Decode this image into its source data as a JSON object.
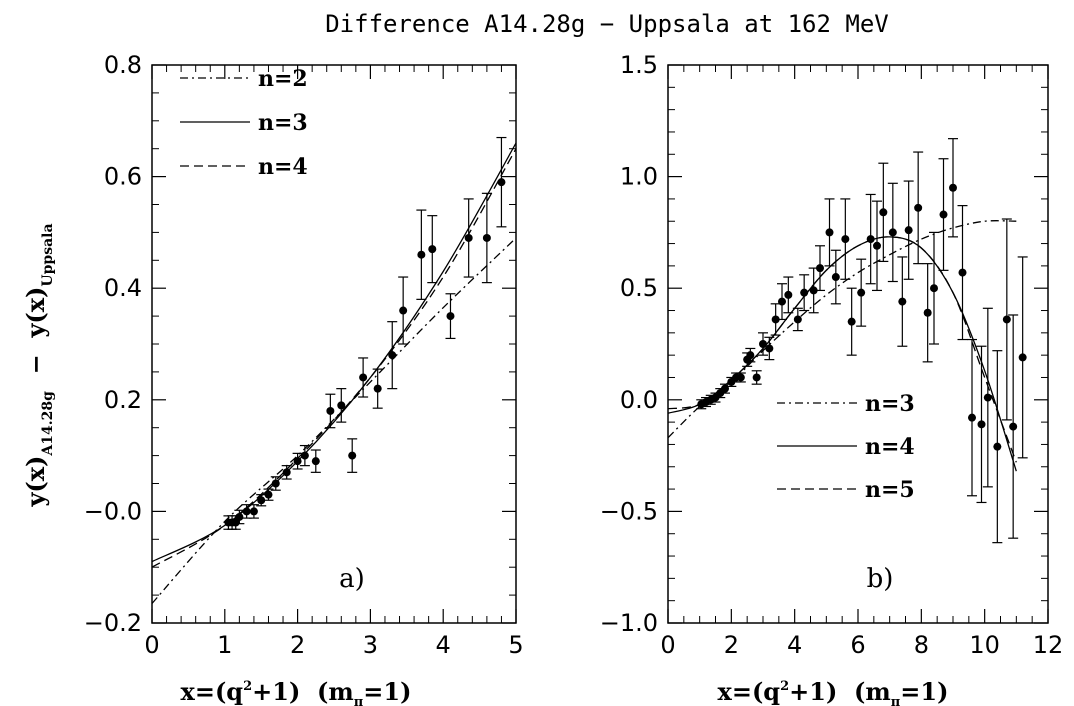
{
  "title": "Difference A14.28g  −  Uppsala at 162 MeV",
  "ylabel": {
    "main": "y(x)",
    "sub1": "A14.28g",
    "mid": "  −  y(x)",
    "sub2": "Uppsala"
  },
  "chart_data": [
    {
      "type": "scatter",
      "panel_label": "a)",
      "xlabel": {
        "prefix": "x=(q",
        "sup": "2",
        "middle": "+1)  (m",
        "sub": "π",
        "suffix": "=1)"
      },
      "xlim": [
        0,
        5
      ],
      "ylim": [
        -0.2,
        0.8
      ],
      "xticks": [
        0,
        1,
        2,
        3,
        4,
        5
      ],
      "xticklabels": [
        "0",
        "1",
        "2",
        "3",
        "4",
        "5"
      ],
      "yticks": [
        -0.2,
        0.0,
        0.2,
        0.4,
        0.6,
        0.8
      ],
      "yticklabels": [
        "−0.2",
        "−0.0",
        "0.2",
        "0.4",
        "0.6",
        "0.8"
      ],
      "points": [
        {
          "x": 1.05,
          "y": -0.02,
          "err": 0.012
        },
        {
          "x": 1.1,
          "y": -0.02,
          "err": 0.012
        },
        {
          "x": 1.15,
          "y": -0.02,
          "err": 0.012
        },
        {
          "x": 1.2,
          "y": -0.01,
          "err": 0.012
        },
        {
          "x": 1.3,
          "y": 0.0,
          "err": 0.012
        },
        {
          "x": 1.4,
          "y": 0.0,
          "err": 0.012
        },
        {
          "x": 1.5,
          "y": 0.02,
          "err": 0.01
        },
        {
          "x": 1.6,
          "y": 0.03,
          "err": 0.01
        },
        {
          "x": 1.7,
          "y": 0.05,
          "err": 0.012
        },
        {
          "x": 1.85,
          "y": 0.07,
          "err": 0.012
        },
        {
          "x": 2.0,
          "y": 0.09,
          "err": 0.014
        },
        {
          "x": 2.1,
          "y": 0.1,
          "err": 0.018
        },
        {
          "x": 2.25,
          "y": 0.09,
          "err": 0.02
        },
        {
          "x": 2.45,
          "y": 0.18,
          "err": 0.03
        },
        {
          "x": 2.6,
          "y": 0.19,
          "err": 0.03
        },
        {
          "x": 2.75,
          "y": 0.1,
          "err": 0.03
        },
        {
          "x": 2.9,
          "y": 0.24,
          "err": 0.035
        },
        {
          "x": 3.1,
          "y": 0.22,
          "err": 0.035
        },
        {
          "x": 3.3,
          "y": 0.28,
          "err": 0.06
        },
        {
          "x": 3.45,
          "y": 0.36,
          "err": 0.06
        },
        {
          "x": 3.7,
          "y": 0.46,
          "err": 0.08
        },
        {
          "x": 3.85,
          "y": 0.47,
          "err": 0.06
        },
        {
          "x": 4.1,
          "y": 0.35,
          "err": 0.04
        },
        {
          "x": 4.35,
          "y": 0.49,
          "err": 0.07
        },
        {
          "x": 4.6,
          "y": 0.49,
          "err": 0.08
        },
        {
          "x": 4.8,
          "y": 0.59,
          "err": 0.08
        }
      ],
      "series": [
        {
          "name": "n=2",
          "dash": "dashdot",
          "x": [
            0,
            1,
            2,
            3,
            4,
            5
          ],
          "y": [
            -0.165,
            -0.018,
            0.1,
            0.232,
            0.365,
            0.49
          ]
        },
        {
          "name": "n=3",
          "dash": "solid",
          "x": [
            0,
            1,
            2,
            3,
            4,
            5
          ],
          "y": [
            -0.09,
            -0.025,
            0.09,
            0.24,
            0.43,
            0.66
          ]
        },
        {
          "name": "n=4",
          "dash": "dashed",
          "x": [
            0,
            1,
            2,
            3,
            4,
            5
          ],
          "y": [
            -0.1,
            -0.025,
            0.095,
            0.24,
            0.42,
            0.65
          ]
        }
      ],
      "legend_position": "top-left"
    },
    {
      "type": "scatter",
      "panel_label": "b)",
      "xlabel": {
        "prefix": "x=(q",
        "sup": "2",
        "middle": "+1)  (m",
        "sub": "π",
        "suffix": "=1)"
      },
      "xlim": [
        0,
        12
      ],
      "ylim": [
        -1.0,
        1.5
      ],
      "xticks": [
        0,
        2,
        4,
        6,
        8,
        10,
        12
      ],
      "xticklabels": [
        "0",
        "2",
        "4",
        "6",
        "8",
        "10",
        "12"
      ],
      "yticks": [
        -1.0,
        -0.5,
        0.0,
        0.5,
        1.0,
        1.5
      ],
      "yticklabels": [
        "−1.0",
        "−0.5",
        "0.0",
        "0.5",
        "1.0",
        "1.5"
      ],
      "points": [
        {
          "x": 1.05,
          "y": -0.02,
          "err": 0.02
        },
        {
          "x": 1.2,
          "y": -0.01,
          "err": 0.02
        },
        {
          "x": 1.35,
          "y": 0.0,
          "err": 0.02
        },
        {
          "x": 1.5,
          "y": 0.01,
          "err": 0.02
        },
        {
          "x": 1.65,
          "y": 0.03,
          "err": 0.02
        },
        {
          "x": 1.8,
          "y": 0.05,
          "err": 0.02
        },
        {
          "x": 2.0,
          "y": 0.08,
          "err": 0.02
        },
        {
          "x": 2.15,
          "y": 0.1,
          "err": 0.02
        },
        {
          "x": 2.3,
          "y": 0.1,
          "err": 0.02
        },
        {
          "x": 2.5,
          "y": 0.18,
          "err": 0.03
        },
        {
          "x": 2.6,
          "y": 0.2,
          "err": 0.03
        },
        {
          "x": 2.8,
          "y": 0.1,
          "err": 0.03
        },
        {
          "x": 3.0,
          "y": 0.25,
          "err": 0.05
        },
        {
          "x": 3.2,
          "y": 0.23,
          "err": 0.05
        },
        {
          "x": 3.4,
          "y": 0.36,
          "err": 0.07
        },
        {
          "x": 3.6,
          "y": 0.44,
          "err": 0.08
        },
        {
          "x": 3.8,
          "y": 0.47,
          "err": 0.08
        },
        {
          "x": 4.1,
          "y": 0.36,
          "err": 0.05
        },
        {
          "x": 4.3,
          "y": 0.48,
          "err": 0.08
        },
        {
          "x": 4.6,
          "y": 0.49,
          "err": 0.1
        },
        {
          "x": 4.8,
          "y": 0.59,
          "err": 0.1
        },
        {
          "x": 5.1,
          "y": 0.75,
          "err": 0.15
        },
        {
          "x": 5.3,
          "y": 0.55,
          "err": 0.12
        },
        {
          "x": 5.6,
          "y": 0.72,
          "err": 0.18
        },
        {
          "x": 5.8,
          "y": 0.35,
          "err": 0.15
        },
        {
          "x": 6.1,
          "y": 0.48,
          "err": 0.15
        },
        {
          "x": 6.4,
          "y": 0.72,
          "err": 0.2
        },
        {
          "x": 6.6,
          "y": 0.69,
          "err": 0.2
        },
        {
          "x": 6.8,
          "y": 0.84,
          "err": 0.22
        },
        {
          "x": 7.1,
          "y": 0.75,
          "err": 0.22
        },
        {
          "x": 7.4,
          "y": 0.44,
          "err": 0.2
        },
        {
          "x": 7.6,
          "y": 0.76,
          "err": 0.22
        },
        {
          "x": 7.9,
          "y": 0.86,
          "err": 0.25
        },
        {
          "x": 8.2,
          "y": 0.39,
          "err": 0.22
        },
        {
          "x": 8.4,
          "y": 0.5,
          "err": 0.25
        },
        {
          "x": 8.7,
          "y": 0.83,
          "err": 0.25
        },
        {
          "x": 9.0,
          "y": 0.95,
          "err": 0.22
        },
        {
          "x": 9.3,
          "y": 0.57,
          "err": 0.3
        },
        {
          "x": 9.6,
          "y": -0.08,
          "err": 0.35
        },
        {
          "x": 9.9,
          "y": -0.11,
          "err": 0.35
        },
        {
          "x": 10.1,
          "y": 0.01,
          "err": 0.4
        },
        {
          "x": 10.4,
          "y": -0.21,
          "err": 0.43
        },
        {
          "x": 10.7,
          "y": 0.36,
          "err": 0.45
        },
        {
          "x": 10.9,
          "y": -0.12,
          "err": 0.5
        },
        {
          "x": 11.2,
          "y": 0.19,
          "err": 0.45
        }
      ],
      "series": [
        {
          "name": "n=3",
          "dash": "dashdot",
          "x": [
            0,
            1,
            2,
            3,
            4,
            5,
            6,
            7,
            8,
            9,
            10,
            11
          ],
          "y": [
            -0.17,
            -0.03,
            0.08,
            0.22,
            0.35,
            0.47,
            0.57,
            0.65,
            0.72,
            0.77,
            0.8,
            0.8
          ]
        },
        {
          "name": "n=4",
          "dash": "solid",
          "x": [
            0,
            1,
            2,
            3,
            4,
            5,
            6,
            7,
            8,
            9,
            10,
            11
          ],
          "y": [
            -0.06,
            -0.02,
            0.09,
            0.23,
            0.41,
            0.58,
            0.69,
            0.73,
            0.68,
            0.48,
            0.13,
            -0.32
          ]
        },
        {
          "name": "n=5",
          "dash": "dashed",
          "x": [
            0,
            1,
            2,
            3,
            4,
            5,
            6,
            7,
            8,
            9,
            10,
            11
          ],
          "y": [
            -0.04,
            -0.02,
            0.09,
            0.23,
            0.41,
            0.58,
            0.69,
            0.73,
            0.68,
            0.48,
            0.1,
            -0.28
          ]
        }
      ],
      "legend_position": "bottom-center"
    }
  ]
}
